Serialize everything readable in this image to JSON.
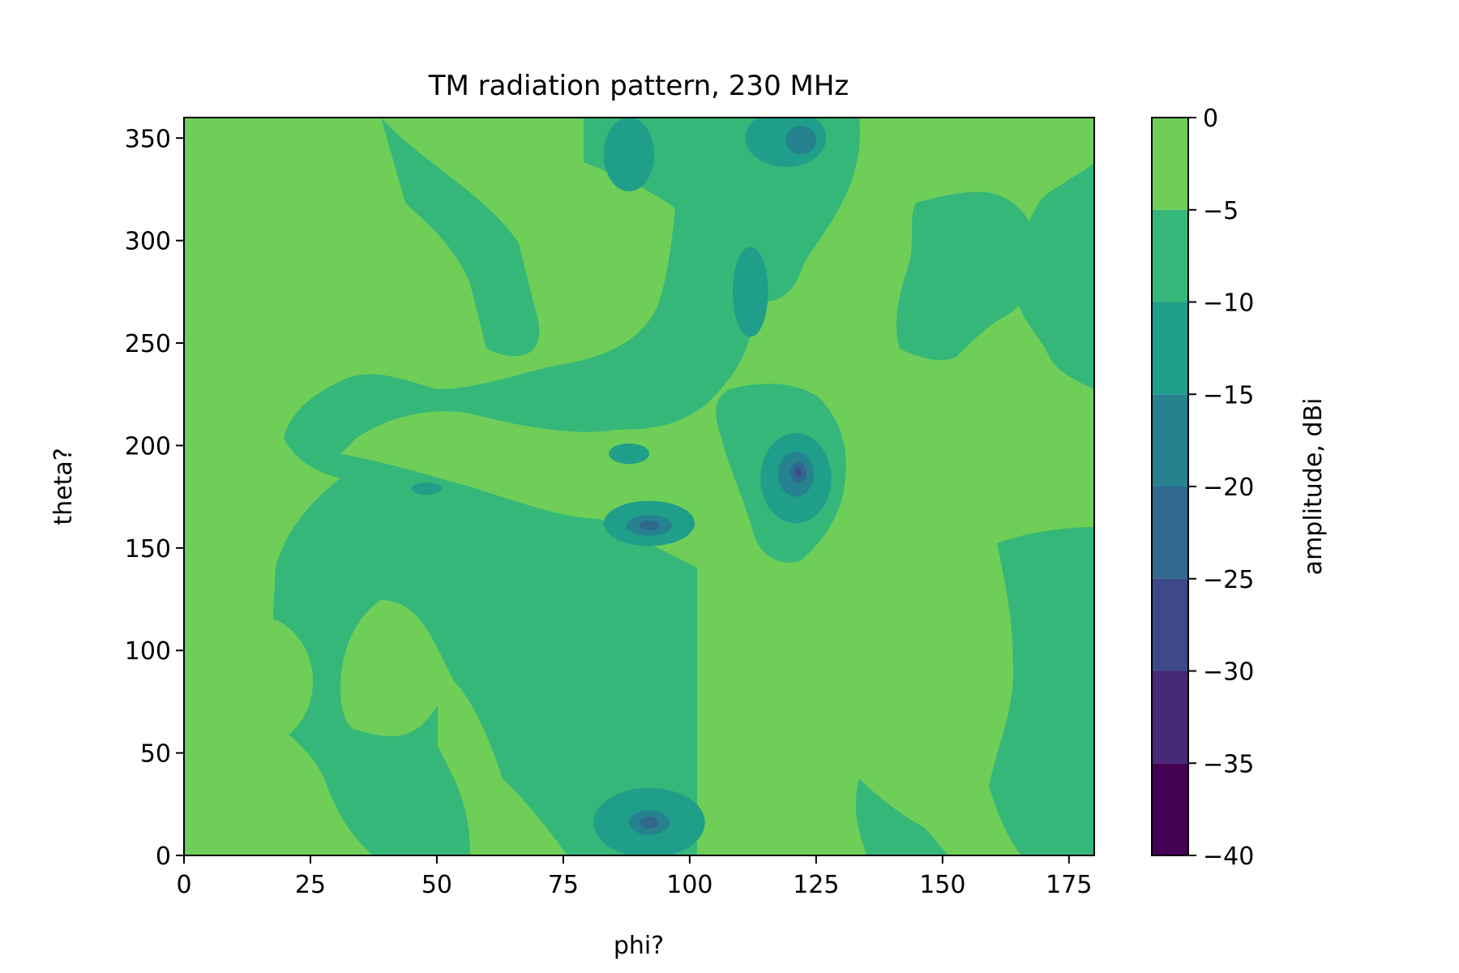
{
  "chart_data": {
    "type": "contour",
    "title": "TM radiation pattern, 230 MHz",
    "xlabel": "phi?",
    "ylabel": "theta?",
    "xlim": [
      0,
      180
    ],
    "ylim": [
      0,
      360
    ],
    "x_ticks": [
      0,
      25,
      50,
      75,
      100,
      125,
      150,
      175
    ],
    "y_ticks": [
      0,
      50,
      100,
      150,
      200,
      250,
      300,
      350
    ],
    "colorbar": {
      "label": "amplitude, dBi",
      "levels": [
        -40,
        -35,
        -30,
        -25,
        -20,
        -15,
        -10,
        -5,
        0
      ],
      "colors": [
        "#440154",
        "#482878",
        "#3e4989",
        "#31688e",
        "#26828e",
        "#1f9e89",
        "#35b779",
        "#6ece58",
        "#b5de2b"
      ],
      "ticks": [
        0,
        -5,
        -10,
        -15,
        -20,
        -25,
        -30,
        -35,
        -40
      ]
    },
    "regions": [
      {
        "level": -5,
        "shape": "ellipse",
        "cx": 14,
        "cy": 85,
        "rx": 11.5,
        "ry": 32
      },
      {
        "level": -5,
        "shape": "ellipse",
        "cx": 38,
        "cy": 290,
        "rx": 6.5,
        "ry": 32,
        "rotate": -20
      },
      {
        "level": -5,
        "shape": "ellipse",
        "cx": 8,
        "cy": 352,
        "rx": 15,
        "ry": 20
      },
      {
        "level": -5,
        "shape": "ellipse",
        "cx": 9,
        "cy": 8,
        "rx": 12,
        "ry": 20
      },
      {
        "level": -15,
        "shape": "ellipse",
        "cx": 112,
        "cy": 275,
        "rx": 3.5,
        "ry": 22
      },
      {
        "level": -15,
        "shape": "ellipse",
        "cx": 88,
        "cy": 342,
        "rx": 5,
        "ry": 18
      },
      {
        "level": -15,
        "shape": "ellipse",
        "cx": 92,
        "cy": 16,
        "rx": 11,
        "ry": 17
      },
      {
        "level": -15,
        "shape": "ellipse",
        "cx": 121,
        "cy": 184,
        "rx": 7,
        "ry": 22
      },
      {
        "level": -15,
        "shape": "ellipse",
        "cx": 92,
        "cy": 162,
        "rx": 9,
        "ry": 11
      },
      {
        "level": -15,
        "shape": "ellipse",
        "cx": 119,
        "cy": 350,
        "rx": 8,
        "ry": 14
      },
      {
        "level": -15,
        "shape": "ellipse",
        "cx": 48,
        "cy": 179,
        "rx": 3,
        "ry": 3
      },
      {
        "level": -15,
        "shape": "ellipse",
        "cx": 88,
        "cy": 196,
        "rx": 4,
        "ry": 5
      },
      {
        "level": -20,
        "shape": "ellipse",
        "cx": 121,
        "cy": 186,
        "rx": 3.5,
        "ry": 11
      },
      {
        "level": -20,
        "shape": "ellipse",
        "cx": 92,
        "cy": 161,
        "rx": 4.5,
        "ry": 5
      },
      {
        "level": -20,
        "shape": "ellipse",
        "cx": 92,
        "cy": 16,
        "rx": 4,
        "ry": 6
      },
      {
        "level": -20,
        "shape": "ellipse",
        "cx": 122,
        "cy": 349,
        "rx": 3,
        "ry": 7
      },
      {
        "level": -25,
        "shape": "ellipse",
        "cx": 121.5,
        "cy": 187,
        "rx": 1.6,
        "ry": 5
      },
      {
        "level": -25,
        "shape": "ellipse",
        "cx": 92,
        "cy": 161,
        "rx": 2,
        "ry": 2.5
      },
      {
        "level": -25,
        "shape": "ellipse",
        "cx": 92,
        "cy": 16,
        "rx": 1.8,
        "ry": 3
      },
      {
        "level": -30,
        "shape": "ellipse",
        "cx": 121.5,
        "cy": 187,
        "rx": 0.7,
        "ry": 2
      }
    ]
  }
}
